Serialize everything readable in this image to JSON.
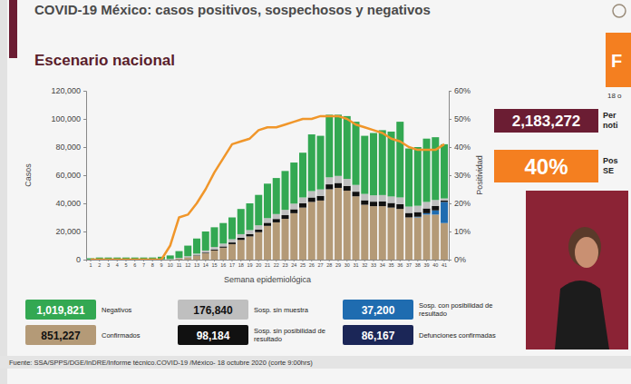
{
  "chart_data": {
    "type": "bar",
    "stacked": true,
    "title": "COVID-19 México: casos positivos, sospechosos y negativos",
    "subtitle": "Escenario nacional",
    "x_label": "Semana epidemiológica",
    "y_label": "Casos",
    "y2_label": "Positividad",
    "categories": [
      "1",
      "2",
      "3",
      "4",
      "5",
      "6",
      "7",
      "8",
      "9",
      "10",
      "11",
      "12",
      "13",
      "14",
      "15",
      "16",
      "17",
      "18",
      "19",
      "20",
      "21",
      "22",
      "23",
      "24",
      "25",
      "26",
      "27",
      "28",
      "29",
      "30",
      "31",
      "32",
      "33",
      "34",
      "35",
      "36",
      "37",
      "38",
      "39",
      "40",
      "41"
    ],
    "ylim": [
      0,
      120000
    ],
    "yticks": [
      0,
      {
        "value": 20000,
        "label": "20,000"
      },
      {
        "value": 40000,
        "label": "40,000"
      },
      {
        "value": 60000,
        "label": "60,000"
      },
      {
        "value": 80000,
        "label": "80,000"
      },
      {
        "value": 100000,
        "label": "100,000"
      },
      {
        "value": 120000,
        "label": "120,000"
      }
    ],
    "y2lim": [
      0,
      60
    ],
    "y2ticks": [
      {
        "value": 0,
        "label": "0%"
      },
      {
        "value": 10,
        "label": "10%"
      },
      {
        "value": 20,
        "label": "20%"
      },
      {
        "value": 30,
        "label": "30%"
      },
      {
        "value": 40,
        "label": "40%"
      },
      {
        "value": 50,
        "label": "50%"
      },
      {
        "value": 60,
        "label": "60%"
      }
    ],
    "grid": false,
    "legend": "bottom",
    "series": [
      {
        "name": "Confirmados",
        "color": "#b49a77",
        "total": "851,227",
        "values": [
          0,
          0,
          0,
          0,
          0,
          0,
          0,
          10,
          30,
          150,
          700,
          1500,
          2800,
          4500,
          6500,
          8500,
          11000,
          14000,
          16500,
          19500,
          24000,
          26500,
          29000,
          33000,
          37000,
          41000,
          42000,
          50000,
          51000,
          49000,
          45000,
          39000,
          38000,
          38000,
          37000,
          36000,
          30000,
          30000,
          32000,
          32000,
          26000
        ]
      },
      {
        "name": "Sosp. con posibilidad de resultado",
        "color": "#1f6cb0",
        "total": "37,200",
        "values": [
          0,
          0,
          0,
          0,
          0,
          0,
          0,
          0,
          0,
          0,
          0,
          0,
          0,
          0,
          0,
          0,
          0,
          0,
          0,
          0,
          0,
          0,
          0,
          0,
          0,
          0,
          0,
          0,
          0,
          0,
          0,
          0,
          0,
          0,
          0,
          0,
          0,
          500,
          1000,
          3000,
          15000
        ]
      },
      {
        "name": "Sosp. sin posibilidad de resultado",
        "color": "#111111",
        "total": "98,184",
        "values": [
          0,
          0,
          0,
          0,
          0,
          0,
          0,
          0,
          0,
          10,
          50,
          150,
          300,
          500,
          700,
          900,
          1200,
          1500,
          1700,
          1900,
          2200,
          2400,
          2600,
          2800,
          3000,
          3200,
          3300,
          3500,
          3500,
          3400,
          3300,
          3200,
          3200,
          3300,
          3300,
          3400,
          3200,
          3300,
          3400,
          3200,
          1000
        ]
      },
      {
        "name": "Sosp. sin muestra",
        "color": "#bfbfbf",
        "total": "176,840",
        "values": [
          100,
          100,
          100,
          100,
          100,
          100,
          100,
          100,
          200,
          300,
          500,
          800,
          1200,
          1500,
          1800,
          2000,
          2300,
          2600,
          2800,
          3000,
          3300,
          3500,
          3800,
          4000,
          4200,
          4500,
          4600,
          5000,
          5000,
          5000,
          4800,
          4500,
          4500,
          4600,
          4600,
          4800,
          4500,
          4500,
          4600,
          4200,
          1500
        ]
      },
      {
        "name": "Negativos",
        "color": "#33a852",
        "total": "1,019,821",
        "values": [
          900,
          1400,
          1400,
          1400,
          1400,
          1400,
          1400,
          1400,
          1800,
          2500,
          4800,
          7500,
          10700,
          13500,
          14000,
          14600,
          15500,
          17900,
          19000,
          21600,
          24500,
          25600,
          27600,
          29200,
          31800,
          40300,
          38100,
          44500,
          43500,
          44600,
          44900,
          41300,
          44300,
          46100,
          46100,
          53800,
          41300,
          41700,
          45000,
          44600,
          38500
        ]
      },
      {
        "type": "line",
        "axis": "y2",
        "color": "#f0962a",
        "values": [
          0,
          0,
          0,
          0,
          0,
          0,
          0,
          0,
          0,
          5,
          15,
          16,
          20,
          25,
          31,
          36,
          41,
          42,
          43,
          46,
          47,
          47,
          48,
          49,
          50,
          50,
          51,
          51,
          51,
          50,
          48,
          47,
          46,
          45,
          43,
          42,
          40,
          39,
          39,
          39,
          41
        ]
      }
    ],
    "legend_extra": {
      "name": "Defunciones confirmadas",
      "color": "#1b2657",
      "total": "86,167"
    },
    "side_boxes": [
      {
        "text": "2,183,272",
        "lines": [
          "Per",
          "noti"
        ],
        "color": "#6b1d33"
      },
      {
        "text": "40%",
        "lines": [
          "Pos",
          "SE"
        ],
        "color": "#f47f20"
      }
    ],
    "corner_tag": {
      "text": "F",
      "date": "18 o",
      "color": "#f47f20"
    },
    "source": "Fuente: SSA/SPPS/DGE/InDRE/Informe técnico.COVID-19 /México- 18 octubre 2020 (corte 9:00hrs)"
  }
}
